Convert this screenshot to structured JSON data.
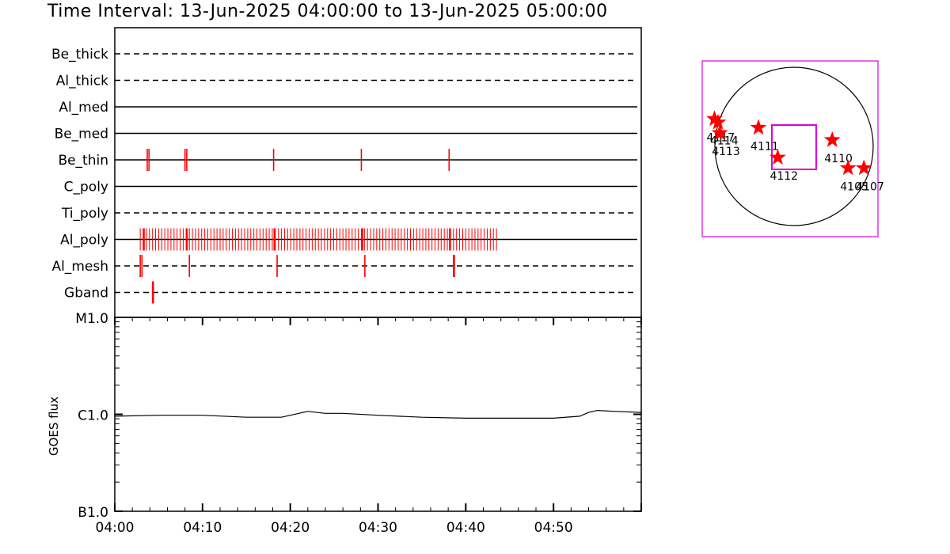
{
  "title": "Time Interval: 13-Jun-2025 04:00:00 to 13-Jun-2025 05:00:00",
  "chart_data": [
    {
      "type": "timeline",
      "x_range_minutes": [
        0,
        60
      ],
      "x_ticks": [
        "04:00",
        "04:10",
        "04:20",
        "04:30",
        "04:40",
        "04:50"
      ],
      "rows": [
        {
          "name": "Be_thick",
          "style": "dashed",
          "events": []
        },
        {
          "name": "Al_thick",
          "style": "dashed",
          "events": []
        },
        {
          "name": "Al_med",
          "style": "solid",
          "events": []
        },
        {
          "name": "Be_med",
          "style": "solid",
          "events": []
        },
        {
          "name": "Be_thin",
          "style": "solid",
          "events": [
            3.7,
            3.9,
            8.0,
            8.2,
            18.1,
            28.1,
            38.1
          ]
        },
        {
          "name": "C_poly",
          "style": "solid",
          "events": []
        },
        {
          "name": "Ti_poly",
          "style": "dashed",
          "events": []
        },
        {
          "name": "Al_poly",
          "style": "solid",
          "events": "periodic",
          "event_start": 2.9,
          "event_end": 43.6,
          "event_step": 0.35,
          "bold_events": [
            3.3,
            8.2,
            18.2,
            28.2,
            38.2
          ]
        },
        {
          "name": "Al_mesh",
          "style": "dashed",
          "events": [
            2.9,
            3.1,
            8.5,
            18.5,
            28.5,
            38.6,
            38.7
          ]
        },
        {
          "name": "Gband",
          "style": "dashed",
          "events": [
            4.3,
            4.4
          ]
        }
      ],
      "event_color": "#ff0000"
    },
    {
      "type": "line",
      "ylabel": "GOES flux",
      "y_ticks": [
        "M1.0",
        "C1.0",
        "B1.0"
      ],
      "y_log_range": [
        -7,
        -5
      ],
      "x_range_minutes": [
        0,
        60
      ],
      "x": [
        0,
        5,
        10,
        15,
        19,
        20,
        22,
        24,
        26,
        30,
        35,
        40,
        45,
        50,
        53,
        54,
        55,
        57,
        60
      ],
      "y": [
        -6.02,
        -6.01,
        -6.01,
        -6.03,
        -6.03,
        -6.01,
        -5.97,
        -5.99,
        -5.99,
        -6.01,
        -6.03,
        -6.04,
        -6.04,
        -6.04,
        -6.02,
        -5.98,
        -5.96,
        -5.97,
        -5.98
      ]
    },
    {
      "type": "scatter",
      "subtype": "solar-disk-map",
      "box_color": "#dd00dd",
      "star_color": "#ff0000",
      "points": [
        {
          "label": "4117",
          "x": 0.07,
          "y": 0.33
        },
        {
          "label": "4114",
          "x": 0.09,
          "y": 0.35
        },
        {
          "label": "4113",
          "x": 0.1,
          "y": 0.41
        },
        {
          "label": "4111",
          "x": 0.32,
          "y": 0.38
        },
        {
          "label": "4112",
          "x": 0.43,
          "y": 0.55
        },
        {
          "label": "4110",
          "x": 0.74,
          "y": 0.45
        },
        {
          "label": "4105",
          "x": 0.83,
          "y": 0.61
        },
        {
          "label": "4107",
          "x": 0.92,
          "y": 0.61
        }
      ]
    }
  ]
}
